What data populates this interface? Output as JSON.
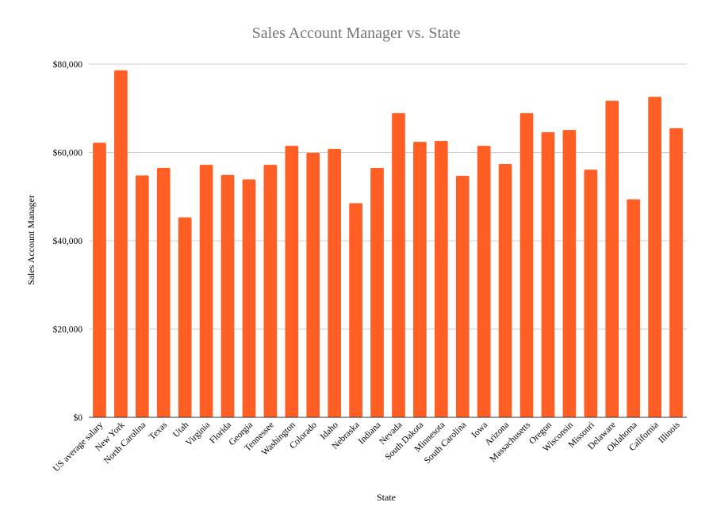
{
  "chart_data": {
    "type": "bar",
    "title": "Sales Account Manager vs. State",
    "xlabel": "State",
    "ylabel": "Sales Account Manager",
    "ylim": [
      0,
      80000
    ],
    "yticks": [
      0,
      20000,
      40000,
      60000,
      80000
    ],
    "ytick_labels": [
      "$0",
      "$20,000",
      "$40,000",
      "$60,000",
      "$80,000"
    ],
    "grid": true,
    "legend": "none",
    "bar_color": "#ff5f24",
    "categories": [
      "US average salary",
      "New York",
      "North Carolina",
      "Texas",
      "Utah",
      "Virginia",
      "Florida",
      "Georgia",
      "Tennessee",
      "Washington",
      "Colorado",
      "Idaho",
      "Nebraska",
      "Indiana",
      "Nevada",
      "South Dakota",
      "Minnesota",
      "South Carolina",
      "Iowa",
      "Arizona",
      "Massachusetts",
      "Oregon",
      "Wisconsin",
      "Missouri",
      "Delaware",
      "Oklahoma",
      "California",
      "Illinois"
    ],
    "values": [
      62200,
      78600,
      54800,
      56500,
      45300,
      57200,
      54900,
      53900,
      57200,
      61500,
      59900,
      60800,
      48500,
      56500,
      68900,
      62400,
      62600,
      54700,
      61500,
      57400,
      68900,
      64600,
      65100,
      56100,
      71700,
      49400,
      72600,
      65500
    ]
  }
}
